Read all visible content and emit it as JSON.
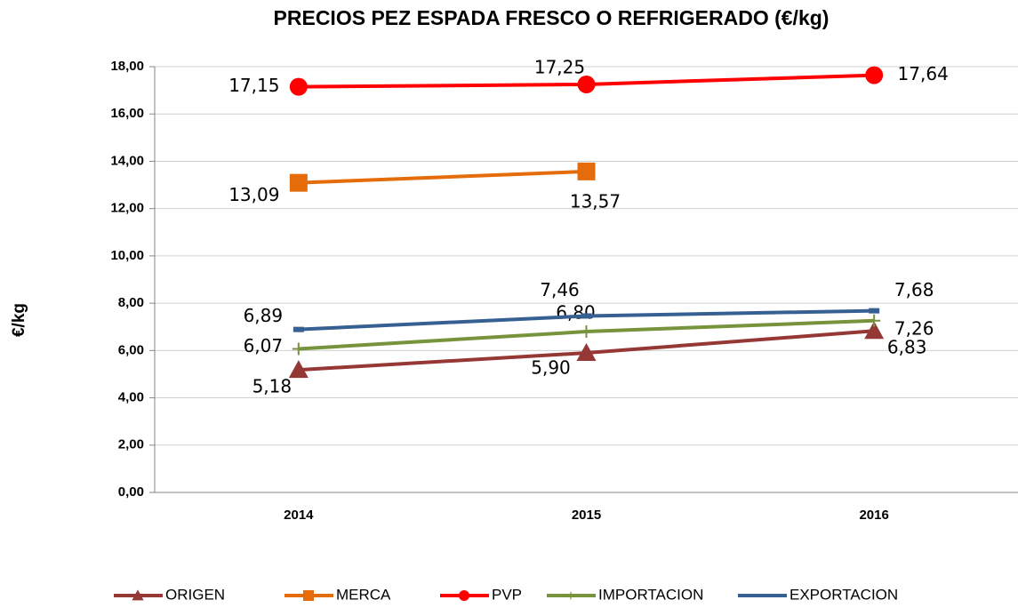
{
  "chart_data": {
    "type": "line",
    "title": "PRECIOS PEZ ESPADA FRESCO O REFRIGERADO (€/kg)",
    "y_label": "€/kg",
    "categories": [
      "2014",
      "2015",
      "2016"
    ],
    "ylim": [
      0,
      18
    ],
    "yticks": [
      {
        "value": 0,
        "label": "0,00"
      },
      {
        "value": 2,
        "label": "2,00"
      },
      {
        "value": 4,
        "label": "4,00"
      },
      {
        "value": 6,
        "label": "6,00"
      },
      {
        "value": 8,
        "label": "8,00"
      },
      {
        "value": 10,
        "label": "10,00"
      },
      {
        "value": 12,
        "label": "12,00"
      },
      {
        "value": 14,
        "label": "14,00"
      },
      {
        "value": 16,
        "label": "16,00"
      },
      {
        "value": 18,
        "label": "18,00"
      }
    ],
    "grid": true,
    "legend": "bottom",
    "series": [
      {
        "name": "ORIGEN",
        "color": "#953735",
        "marker": "triangle",
        "values": [
          5.18,
          5.9,
          6.83
        ],
        "value_labels": [
          "5,18",
          "5,90",
          "6,83"
        ]
      },
      {
        "name": "MERCA",
        "color": "#e46c0a",
        "marker": "square",
        "values": [
          13.09,
          13.57,
          null
        ],
        "value_labels": [
          "13,09",
          "13,57",
          null
        ]
      },
      {
        "name": "PVP",
        "color": "#ff0000",
        "marker": "circle",
        "values": [
          17.15,
          17.25,
          17.64
        ],
        "value_labels": [
          "17,15",
          "17,25",
          "17,64"
        ]
      },
      {
        "name": "IMPORTACION",
        "color": "#77933c",
        "marker": "plus",
        "values": [
          6.07,
          6.8,
          7.26
        ],
        "value_labels": [
          "6,07",
          "6,80",
          "7,26"
        ]
      },
      {
        "name": "EXPORTACION",
        "color": "#376092",
        "marker": "dash",
        "values": [
          6.89,
          7.46,
          7.68
        ],
        "value_labels": [
          "6,89",
          "7,46",
          "7,68"
        ]
      }
    ]
  }
}
